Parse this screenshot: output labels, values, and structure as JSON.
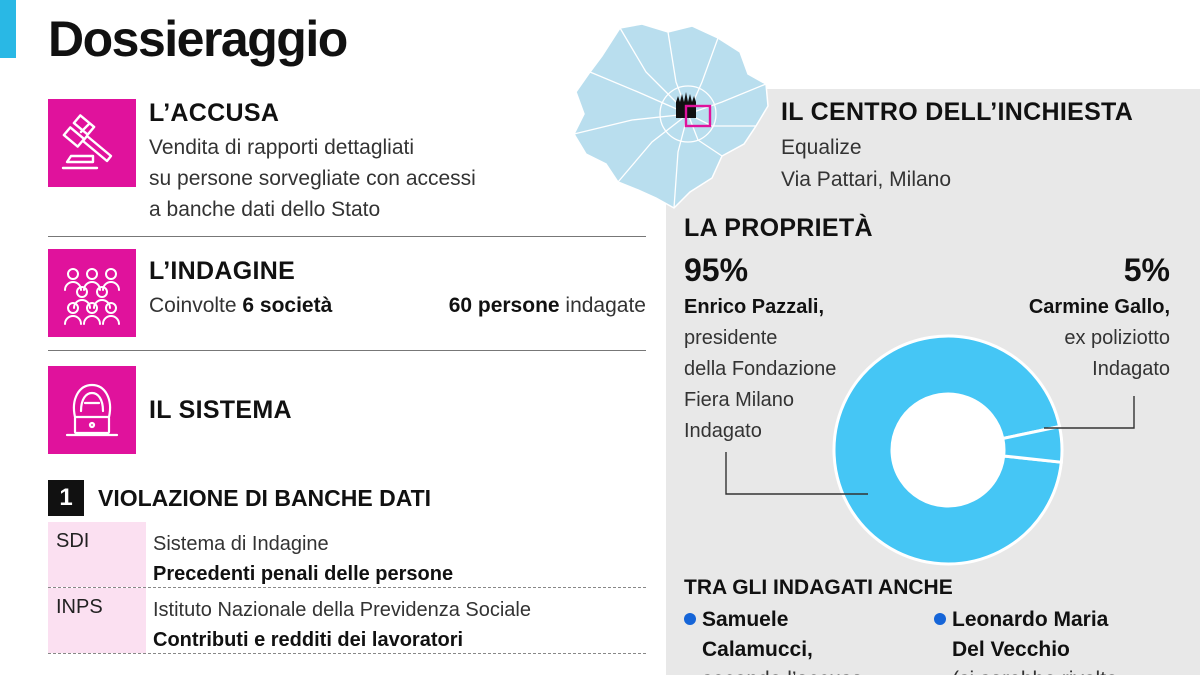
{
  "title": "Dossieraggio",
  "accusa": {
    "title": "L’ACCUSA",
    "lines": [
      "Vendita di rapporti dettagliati",
      "su persone sorvegliate con accessi",
      "a banche dati dello Stato"
    ]
  },
  "indagine": {
    "title": "L’INDAGINE",
    "left_prefix": "Coinvolte ",
    "left_bold": "6 società",
    "right_bold": "60 persone",
    "right_suffix": " indagate"
  },
  "sistema": {
    "title": "IL SISTEMA"
  },
  "violazione": {
    "number": "1",
    "title": "VIOLAZIONE DI BANCHE DATI",
    "rows": [
      {
        "code": "SDI",
        "name": "Sistema di Indagine",
        "desc": "Precedenti penali delle persone"
      },
      {
        "code": "INPS",
        "name": "Istituto Nazionale della Previdenza Sociale",
        "desc": "Contributi e redditi dei lavoratori"
      }
    ]
  },
  "centro": {
    "title": "IL CENTRO DELL’INCHIESTA",
    "company": "Equalize",
    "address": "Via Pattari, Milano"
  },
  "proprieta": {
    "title": "LA PROPRIETÀ",
    "owners": [
      {
        "pct": "95%",
        "name": "Enrico Pazzali,",
        "desc": [
          "presidente",
          "della Fondazione",
          "Fiera Milano",
          "Indagato"
        ]
      },
      {
        "pct": "5%",
        "name": "Carmine Gallo,",
        "desc": [
          "ex poliziotto",
          "Indagato"
        ]
      }
    ]
  },
  "chart_data": {
    "type": "pie",
    "categories": [
      "Enrico Pazzali",
      "Carmine Gallo"
    ],
    "values": [
      95,
      5
    ],
    "colors": [
      "#45c6f5",
      "#45c6f5"
    ]
  },
  "tra_gli_indagati": {
    "title": "TRA GLI INDAGATI ANCHE",
    "items": [
      {
        "lines": [
          "Samuele",
          "Calamucci,",
          "secondo l’accusa"
        ]
      },
      {
        "lines": [
          "Leonardo Maria",
          "Del Vecchio",
          "(si sarebbe rivolto"
        ]
      }
    ]
  },
  "colors": {
    "magenta": "#e0129c",
    "cyan": "#29b8e5",
    "donut": "#45c6f5",
    "panel": "#e8e8e8",
    "map": "#b9deee"
  },
  "icons": [
    "gavel-icon",
    "people-group-icon",
    "hacker-laptop-icon",
    "duomo-icon"
  ]
}
